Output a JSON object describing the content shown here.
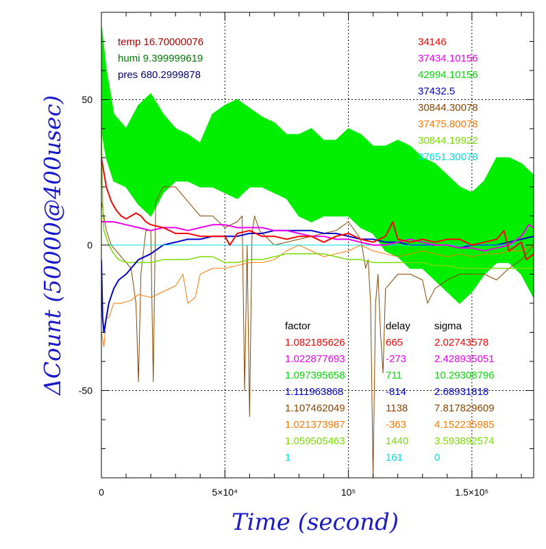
{
  "chart_data": {
    "type": "line",
    "xlabel": "Time (second)",
    "ylabel": "ΔCount (50000@400usec)",
    "xlim": [
      0,
      175000
    ],
    "ylim": [
      -80,
      80
    ],
    "x_ticks": [
      {
        "value": 0,
        "label": "0"
      },
      {
        "value": 50000,
        "label": "5×10⁴"
      },
      {
        "value": 100000,
        "label": "10⁵"
      },
      {
        "value": 150000,
        "label": "1.5×10⁵"
      }
    ],
    "y_ticks": [
      {
        "value": -50,
        "label": "-50"
      },
      {
        "value": 0,
        "label": "0"
      },
      {
        "value": 50,
        "label": "50"
      }
    ],
    "grid": true,
    "env": [
      {
        "text": "temp 16.70000076",
        "color": "#aa0000"
      },
      {
        "text": "humi 9.399999619",
        "color": "#007700"
      },
      {
        "text": "pres 680.2999878",
        "color": "#000077"
      }
    ],
    "right_values": [
      {
        "text": "34146",
        "color": "#ff0000"
      },
      {
        "text": "37434.10156",
        "color": "#ee00ee"
      },
      {
        "text": "42994.10156",
        "color": "#00dd00"
      },
      {
        "text": "37432.5",
        "color": "#0000cc"
      },
      {
        "text": "30844.30078",
        "color": "#884400"
      },
      {
        "text": "37475.80078",
        "color": "#ff7700"
      },
      {
        "text": "30844.19922",
        "color": "#77dd00"
      },
      {
        "text": "37651.30078",
        "color": "#00dddd"
      }
    ],
    "table": {
      "headers": [
        "factor",
        "delay",
        "sigma"
      ],
      "rows": [
        {
          "factor": "1.082185626",
          "delay": "665",
          "sigma": "2.02743578",
          "color": "#ff0000"
        },
        {
          "factor": "1.022877693",
          "delay": "-273",
          "sigma": "2.428935051",
          "color": "#ee00ee"
        },
        {
          "factor": "1.097395658",
          "delay": "711",
          "sigma": "10.29308796",
          "color": "#00dd00"
        },
        {
          "factor": "1.111963868",
          "delay": "-814",
          "sigma": "2.68931818",
          "color": "#0000cc"
        },
        {
          "factor": "1.107462049",
          "delay": "1138",
          "sigma": "7.817829609",
          "color": "#884400"
        },
        {
          "factor": "1.021373987",
          "delay": "-363",
          "sigma": "4.152235985",
          "color": "#ff7700"
        },
        {
          "factor": "1.059505463",
          "delay": "1440",
          "sigma": "3.593892574",
          "color": "#77dd00"
        },
        {
          "factor": "1",
          "delay": "161",
          "sigma": "0",
          "color": "#00dddd"
        }
      ]
    },
    "series": [
      {
        "color": "#00ee00",
        "width": 1.5,
        "band": true,
        "x": [
          0,
          2000,
          5000,
          10000,
          15000,
          20000,
          25000,
          30000,
          35000,
          40000,
          45000,
          50000,
          55000,
          60000,
          65000,
          70000,
          75000,
          80000,
          85000,
          90000,
          95000,
          100000,
          105000,
          110000,
          115000,
          120000,
          125000,
          130000,
          135000,
          140000,
          145000,
          150000,
          155000,
          160000,
          165000,
          170000,
          175000
        ],
        "upper": [
          75,
          60,
          45,
          40,
          48,
          52,
          45,
          40,
          38,
          35,
          45,
          48,
          50,
          47,
          44,
          42,
          38,
          38,
          40,
          36,
          36,
          40,
          38,
          34,
          34,
          36,
          34,
          30,
          28,
          24,
          20,
          18,
          22,
          30,
          30,
          28,
          24
        ],
        "lower": [
          40,
          30,
          22,
          20,
          14,
          10,
          18,
          22,
          22,
          20,
          20,
          18,
          16,
          20,
          20,
          18,
          16,
          10,
          8,
          10,
          10,
          10,
          6,
          4,
          -2,
          -4,
          -8,
          -8,
          -12,
          -16,
          -20,
          -16,
          -10,
          -6,
          -6,
          -10,
          -18
        ]
      },
      {
        "color": "#884400",
        "width": 1,
        "x": [
          0,
          1000,
          2000,
          4000,
          8000,
          12000,
          14000,
          15000,
          16000,
          18000,
          20000,
          21000,
          22000,
          25000,
          30000,
          35000,
          40000,
          45000,
          50000,
          55000,
          57000,
          58000,
          59000,
          60000,
          61000,
          62000,
          64000,
          70000,
          80000,
          90000,
          95000,
          100000,
          105000,
          107000,
          108000,
          109000,
          110000,
          111000,
          112000,
          113000,
          114000,
          115000,
          120000,
          125000,
          130000,
          132000,
          135000,
          140000,
          145000,
          150000,
          155000,
          160000,
          165000,
          170000,
          175000
        ],
        "y": [
          15,
          10,
          5,
          0,
          -4,
          -8,
          -20,
          -47,
          -10,
          5,
          5,
          -47,
          15,
          20,
          20,
          15,
          10,
          10,
          6,
          8,
          10,
          -50,
          0,
          -59,
          4,
          10,
          5,
          0,
          2,
          4,
          5,
          8,
          2,
          -8,
          -5,
          -20,
          -80,
          -20,
          -10,
          -30,
          -44,
          -15,
          -10,
          -10,
          -12,
          -20,
          -15,
          -12,
          -10,
          -10,
          -10,
          -12,
          -8,
          -5,
          0
        ]
      },
      {
        "color": "#ff7700",
        "width": 1,
        "x": [
          0,
          1000,
          2000,
          3000,
          5000,
          8000,
          12000,
          15000,
          20000,
          25000,
          30000,
          33000,
          35000,
          38000,
          40000,
          45000,
          50000,
          55000,
          60000,
          65000,
          70000,
          75000,
          80000,
          85000,
          90000,
          95000,
          100000,
          105000,
          110000,
          115000,
          120000,
          125000,
          130000,
          135000,
          140000,
          145000,
          150000,
          155000,
          160000,
          165000,
          170000,
          175000
        ],
        "y": [
          -30,
          -35,
          -25,
          -25,
          -20,
          -20,
          -19,
          -17,
          -18,
          -16,
          -14,
          -10,
          -20,
          -18,
          -10,
          -8,
          -8,
          -7,
          -6,
          -6,
          -5,
          -2,
          0,
          -2,
          -4,
          -3,
          -2,
          0,
          -2,
          -3,
          -4,
          -3,
          -2,
          -3,
          -4,
          -3,
          -4,
          -3,
          -3,
          -2,
          -2,
          0
        ]
      },
      {
        "color": "#77dd00",
        "width": 1.5,
        "x": [
          0,
          500,
          1000,
          3000,
          5000,
          7000,
          10000,
          15000,
          20000,
          25000,
          30000,
          35000,
          40000,
          45000,
          50000,
          55000,
          60000,
          65000,
          70000,
          75000,
          80000,
          85000,
          90000,
          95000,
          100000,
          105000,
          110000,
          115000,
          120000,
          125000,
          130000,
          135000,
          140000,
          145000,
          150000,
          155000,
          160000,
          165000,
          170000,
          175000
        ],
        "y": [
          40,
          15,
          5,
          0,
          -3,
          -5,
          -6,
          -6,
          -6,
          -5,
          -5,
          -5,
          -4,
          -4,
          -6,
          -6,
          -5,
          -5,
          -4,
          -3,
          -3,
          -3,
          -3,
          -4,
          -5,
          -5,
          -6,
          -6,
          -6,
          -6,
          -6,
          -7,
          -7,
          -8,
          -8,
          -8,
          -8,
          -8,
          -8,
          -8
        ]
      },
      {
        "color": "#0000cc",
        "width": 2,
        "x": [
          0,
          500,
          1000,
          2000,
          3000,
          5000,
          7000,
          10000,
          12000,
          15000,
          20000,
          25000,
          30000,
          35000,
          40000,
          45000,
          50000,
          55000,
          60000,
          65000,
          70000,
          75000,
          80000,
          85000,
          90000,
          95000,
          100000,
          105000,
          110000,
          115000,
          120000,
          125000,
          130000,
          135000,
          140000,
          145000,
          150000,
          155000,
          160000,
          165000,
          170000,
          175000
        ],
        "y": [
          -5,
          -25,
          -30,
          -25,
          -20,
          -15,
          -12,
          -10,
          -8,
          -5,
          -3,
          0,
          1,
          2,
          2,
          3,
          3,
          3,
          4,
          4,
          5,
          5,
          5,
          5,
          4,
          4,
          3,
          2,
          2,
          1,
          1,
          0,
          0,
          0,
          0,
          -1,
          0,
          0,
          0,
          1,
          2,
          3
        ]
      },
      {
        "color": "#00dddd",
        "width": 1,
        "x": [
          0,
          5000,
          10000,
          50000,
          100000,
          150000,
          175000
        ],
        "y": [
          0,
          0,
          0,
          0,
          0,
          0,
          0
        ]
      },
      {
        "color": "#ee00ee",
        "width": 2,
        "x": [
          0,
          5000,
          10000,
          15000,
          20000,
          25000,
          30000,
          35000,
          40000,
          45000,
          50000,
          55000,
          60000,
          65000,
          70000,
          75000,
          80000,
          85000,
          90000,
          95000,
          100000,
          105000,
          110000,
          115000,
          120000,
          125000,
          130000,
          135000,
          140000,
          145000,
          150000,
          155000,
          160000,
          165000,
          170000,
          173000,
          175000
        ],
        "y": [
          8,
          8,
          7,
          6,
          5,
          6,
          6,
          5,
          6,
          7,
          7,
          6,
          6,
          6,
          5,
          5,
          4,
          3,
          3,
          2,
          2,
          1,
          0,
          0,
          1,
          2,
          1,
          0,
          0,
          -1,
          -1,
          -2,
          -1,
          0,
          3,
          7,
          6
        ]
      },
      {
        "color": "#ff0000",
        "width": 2,
        "x": [
          0,
          2000,
          4000,
          6000,
          8000,
          10000,
          12000,
          14000,
          16000,
          18000,
          20000,
          25000,
          30000,
          35000,
          40000,
          45000,
          50000,
          52000,
          55000,
          60000,
          65000,
          70000,
          75000,
          80000,
          85000,
          90000,
          95000,
          100000,
          105000,
          110000,
          115000,
          118000,
          120000,
          125000,
          130000,
          135000,
          140000,
          145000,
          150000,
          155000,
          160000,
          163000,
          165000,
          170000,
          172000,
          175000
        ],
        "y": [
          30,
          20,
          15,
          12,
          10,
          9,
          10,
          11,
          10,
          8,
          7,
          6,
          4,
          4,
          3,
          3,
          3,
          0,
          4,
          5,
          3,
          3,
          2,
          3,
          3,
          1,
          3,
          4,
          2,
          1,
          3,
          8,
          2,
          1,
          2,
          1,
          2,
          2,
          0,
          1,
          2,
          5,
          -2,
          1,
          -5,
          -3
        ]
      }
    ]
  }
}
